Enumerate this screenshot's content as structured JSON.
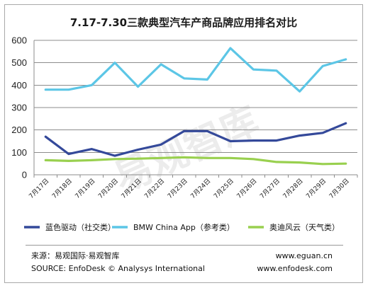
{
  "title": "7.17-7.30三款典型汽车产商品牌应用排名对比",
  "watermark": "易观智库",
  "footer": {
    "source_cn": "来源：易观国际·易观智库",
    "source_en": "SOURCE:  EnfoDesk © Analysys International",
    "url_1": "www.eguan.cn",
    "url_2": "www.enfodesk.com"
  },
  "colors": {
    "series_1": "#34499a",
    "series_2": "#5cc6e6",
    "series_3": "#99d04f",
    "gridline": "#8c8c8c",
    "axis": "#8c8c8c"
  },
  "chart_data": {
    "type": "line",
    "title": "7.17-7.30三款典型汽车产商品牌应用排名对比",
    "xlabel": "",
    "ylabel": "",
    "ylim": [
      0,
      600
    ],
    "yticks": [
      0,
      100,
      200,
      300,
      400,
      500,
      600
    ],
    "grid": true,
    "legend_position": "bottom",
    "categories": [
      "7月17日",
      "7月18日",
      "7月19日",
      "7月20日",
      "7月21日",
      "7月22日",
      "7月23日",
      "7月24日",
      "7月25日",
      "7月26日",
      "7月27日",
      "7月28日",
      "7月29日",
      "7月30日"
    ],
    "series": [
      {
        "name": "蓝色驱动（社交类）",
        "color": "#34499a",
        "values": [
          170,
          93,
          115,
          85,
          112,
          135,
          195,
          195,
          150,
          153,
          153,
          175,
          187,
          230
        ]
      },
      {
        "name": "BMW China App（参考类）",
        "color": "#5cc6e6",
        "values": [
          380,
          380,
          400,
          500,
          393,
          493,
          430,
          425,
          565,
          470,
          465,
          372,
          485,
          515
        ]
      },
      {
        "name": "奥迪风云（天气类）",
        "color": "#99d04f",
        "values": [
          65,
          62,
          65,
          70,
          72,
          75,
          78,
          75,
          75,
          70,
          57,
          55,
          48,
          50
        ]
      }
    ]
  }
}
